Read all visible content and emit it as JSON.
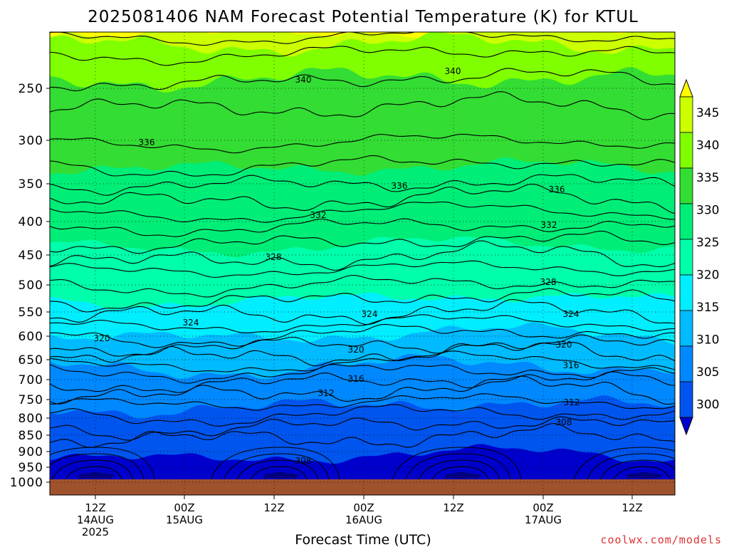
{
  "chart_data": {
    "type": "heatmap",
    "title": "2025081406 NAM Forecast Potential Temperature (K) for KTUL",
    "xlabel": "Forecast Time (UTC)",
    "ylabel": "",
    "credit": "coolwx.com/models",
    "units": "K",
    "y_axis": {
      "type": "pressure",
      "ticks": [
        "250",
        "300",
        "350",
        "400",
        "450",
        "500",
        "550",
        "600",
        "650",
        "700",
        "750",
        "800",
        "850",
        "900",
        "950",
        "1000"
      ]
    },
    "x_axis": {
      "ticks": [
        {
          "line1": "12Z",
          "line2": "14AUG",
          "line3": "2025"
        },
        {
          "line1": "00Z",
          "line2": "15AUG",
          "line3": ""
        },
        {
          "line1": "12Z",
          "line2": "",
          "line3": ""
        },
        {
          "line1": "00Z",
          "line2": "16AUG",
          "line3": ""
        },
        {
          "line1": "12Z",
          "line2": "",
          "line3": ""
        },
        {
          "line1": "00Z",
          "line2": "17AUG",
          "line3": ""
        },
        {
          "line1": "12Z",
          "line2": "",
          "line3": ""
        }
      ]
    },
    "colorbar": {
      "levels": [
        "345",
        "340",
        "335",
        "330",
        "325",
        "320",
        "315",
        "310",
        "305",
        "300"
      ],
      "colors": [
        "#ffff00",
        "#ccff00",
        "#7fff00",
        "#33dd33",
        "#00ee77",
        "#00ffaa",
        "#00eeff",
        "#00bbff",
        "#0088ff",
        "#0055ee",
        "#0000cc"
      ]
    },
    "contour_labels": [
      "340",
      "340",
      "336",
      "336",
      "336",
      "332",
      "332",
      "328",
      "328",
      "324",
      "324",
      "324",
      "320",
      "320",
      "320",
      "316",
      "316",
      "312",
      "312",
      "308",
      "308"
    ]
  }
}
